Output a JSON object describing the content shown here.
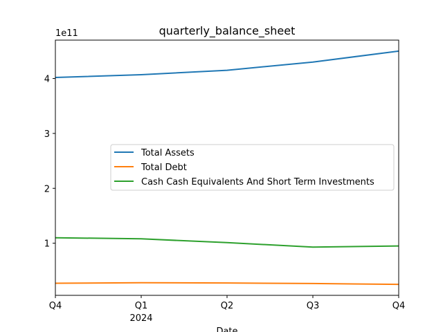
{
  "chart_data": {
    "type": "line",
    "title": "quarterly_balance_sheet",
    "xlabel": "Date",
    "ylabel": "",
    "y_offset_label": "1e11",
    "x_ticks": [
      "Q4",
      "Q1",
      "Q2",
      "Q3",
      "Q4"
    ],
    "x_year_label": "2024",
    "y_ticks": [
      "1",
      "2",
      "3",
      "4"
    ],
    "y_tick_values": [
      1,
      2,
      3,
      4
    ],
    "ylim": [
      0.05,
      4.7
    ],
    "legend_position": "center-right",
    "grid": false,
    "series": [
      {
        "name": "Total Assets",
        "color": "#1f77b4",
        "values": [
          4.02,
          4.07,
          4.15,
          4.3,
          4.5
        ]
      },
      {
        "name": "Total Debt",
        "color": "#ff7f0e",
        "values": [
          0.27,
          0.28,
          0.275,
          0.265,
          0.25
        ]
      },
      {
        "name": "Cash Cash Equivalents And Short Term Investments",
        "color": "#2ca02c",
        "values": [
          1.1,
          1.08,
          1.01,
          0.93,
          0.95
        ]
      }
    ]
  }
}
